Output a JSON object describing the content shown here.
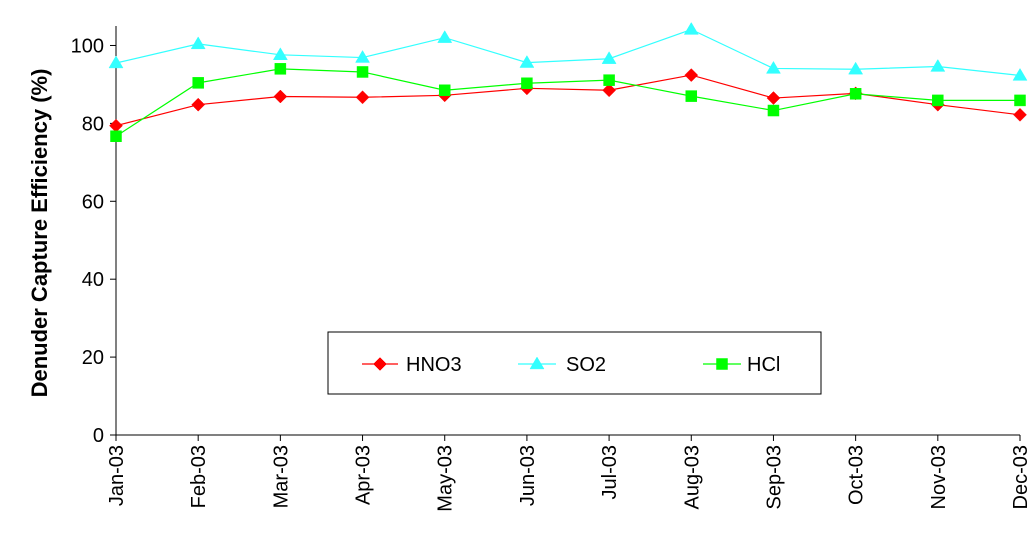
{
  "chart_data": {
    "type": "line",
    "title": "",
    "xlabel": "",
    "ylabel": "Denuder Capture Efficiency (%)",
    "ylim": [
      0,
      105
    ],
    "yticks": [
      0,
      20,
      40,
      60,
      80,
      100
    ],
    "grid": false,
    "legend_position": "bottom-center",
    "x": [
      "Jan-03",
      "Feb-03",
      "Mar-03",
      "Apr-03",
      "May-03",
      "Jun-03",
      "Jul-03",
      "Aug-03",
      "Sep-03",
      "Oct-03",
      "Nov-03",
      "Dec-03"
    ],
    "series": [
      {
        "name": "HNO3",
        "color": "#FF0000",
        "marker": "diamond",
        "values": [
          79.4,
          84.8,
          86.9,
          86.7,
          87.2,
          89.0,
          88.5,
          92.4,
          86.5,
          87.7,
          84.8,
          82.2
        ]
      },
      {
        "name": "SO2",
        "color": "#33FFFF",
        "marker": "triangle",
        "values": [
          95.5,
          100.4,
          97.6,
          96.9,
          102.0,
          95.6,
          96.6,
          104.1,
          94.1,
          93.9,
          94.6,
          92.3
        ]
      },
      {
        "name": "HCl",
        "color": "#00FF00",
        "marker": "square",
        "values": [
          76.7,
          90.4,
          94.0,
          93.2,
          88.5,
          90.3,
          91.1,
          87.0,
          83.3,
          87.6,
          85.9,
          85.9
        ]
      }
    ]
  }
}
